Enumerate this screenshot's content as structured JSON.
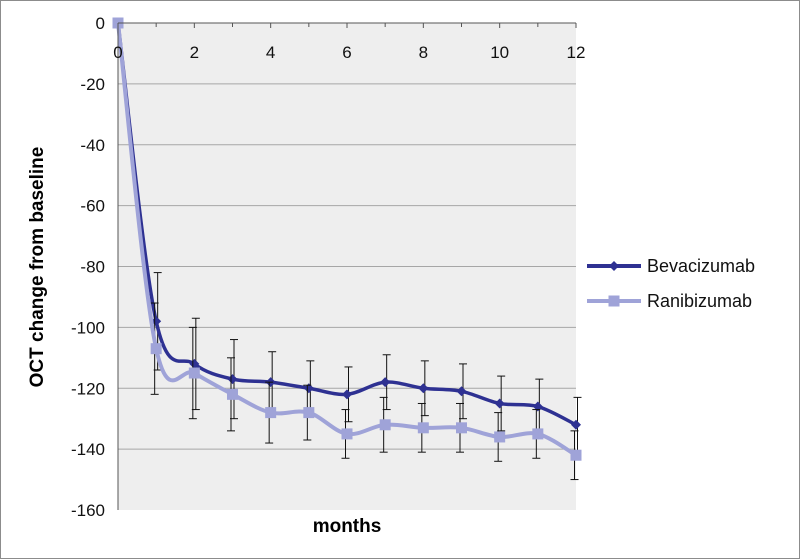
{
  "chart_data": {
    "type": "line",
    "title": "",
    "xlabel": "months",
    "ylabel": "OCT change from baseline",
    "xlim": [
      0,
      12
    ],
    "ylim": [
      -160,
      0
    ],
    "x_ticks": [
      "0",
      "2",
      "4",
      "6",
      "8",
      "10",
      "12"
    ],
    "y_ticks": [
      "0",
      "-20",
      "-40",
      "-60",
      "-80",
      "-100",
      "-120",
      "-140",
      "-160"
    ],
    "grid": "horizontal",
    "plot_background": "#eeeeee",
    "legend_position": "right",
    "x": [
      0,
      1,
      2,
      3,
      4,
      5,
      6,
      7,
      8,
      9,
      10,
      11,
      12
    ],
    "series": [
      {
        "name": "Bevacizumab",
        "color": "#2e3192",
        "marker": "diamond",
        "values": [
          0,
          -98,
          -112,
          -117,
          -118,
          -120,
          -122,
          -118,
          -120,
          -121,
          -125,
          -126,
          -132
        ],
        "error": [
          0,
          16,
          15,
          13,
          10,
          9,
          9,
          9,
          9,
          9,
          9,
          9,
          9
        ]
      },
      {
        "name": "Ranibizumab",
        "color": "#9fa3d8",
        "marker": "square",
        "values": [
          0,
          -107,
          -115,
          -122,
          -128,
          -128,
          -135,
          -132,
          -133,
          -133,
          -136,
          -135,
          -142
        ],
        "error": [
          0,
          15,
          15,
          12,
          10,
          9,
          8,
          9,
          8,
          8,
          8,
          8,
          8
        ]
      }
    ]
  }
}
